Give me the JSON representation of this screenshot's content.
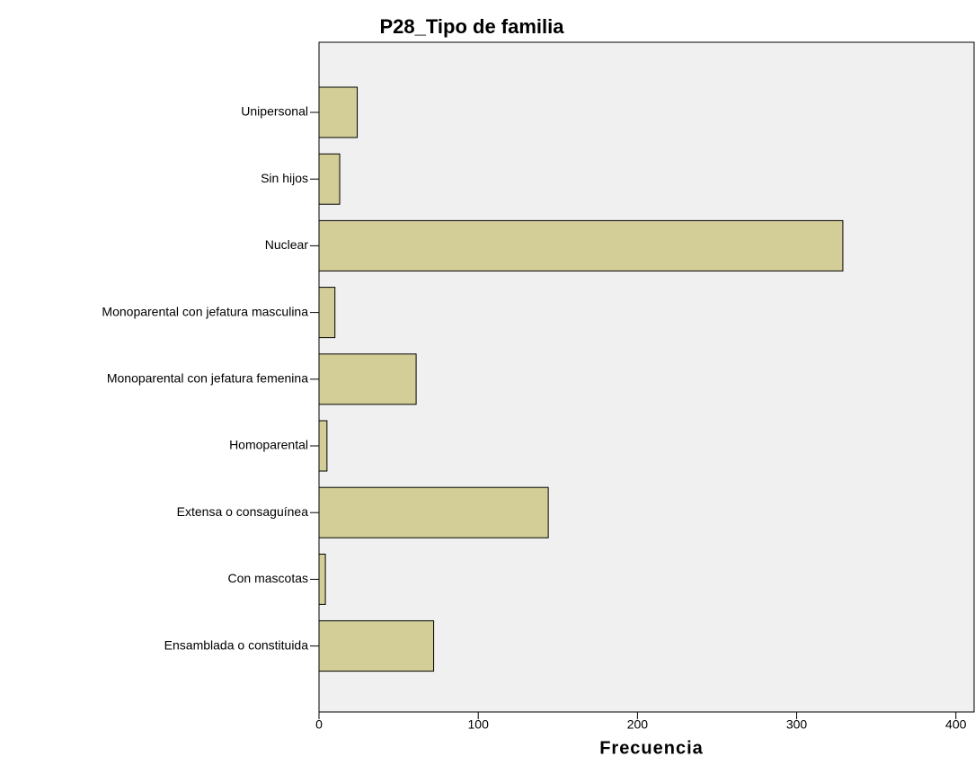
{
  "chart_data": {
    "type": "barh",
    "title": "P28_Tipo de  familia",
    "categories": [
      "Unipersonal",
      "Sin hijos",
      "Nuclear",
      "Monoparental con jefatura masculina",
      "Monoparental con jefatura femenina",
      "Homoparental",
      "Extensa o consaguínea",
      "Con mascotas",
      "Ensamblada o constituida"
    ],
    "values": [
      24,
      13,
      329,
      10,
      61,
      5,
      144,
      4,
      72
    ],
    "color": "#d3ce97",
    "x_label": "Frecuencia",
    "xlim": [
      0,
      412
    ],
    "xticks": [
      0,
      100,
      200,
      300,
      400
    ]
  }
}
